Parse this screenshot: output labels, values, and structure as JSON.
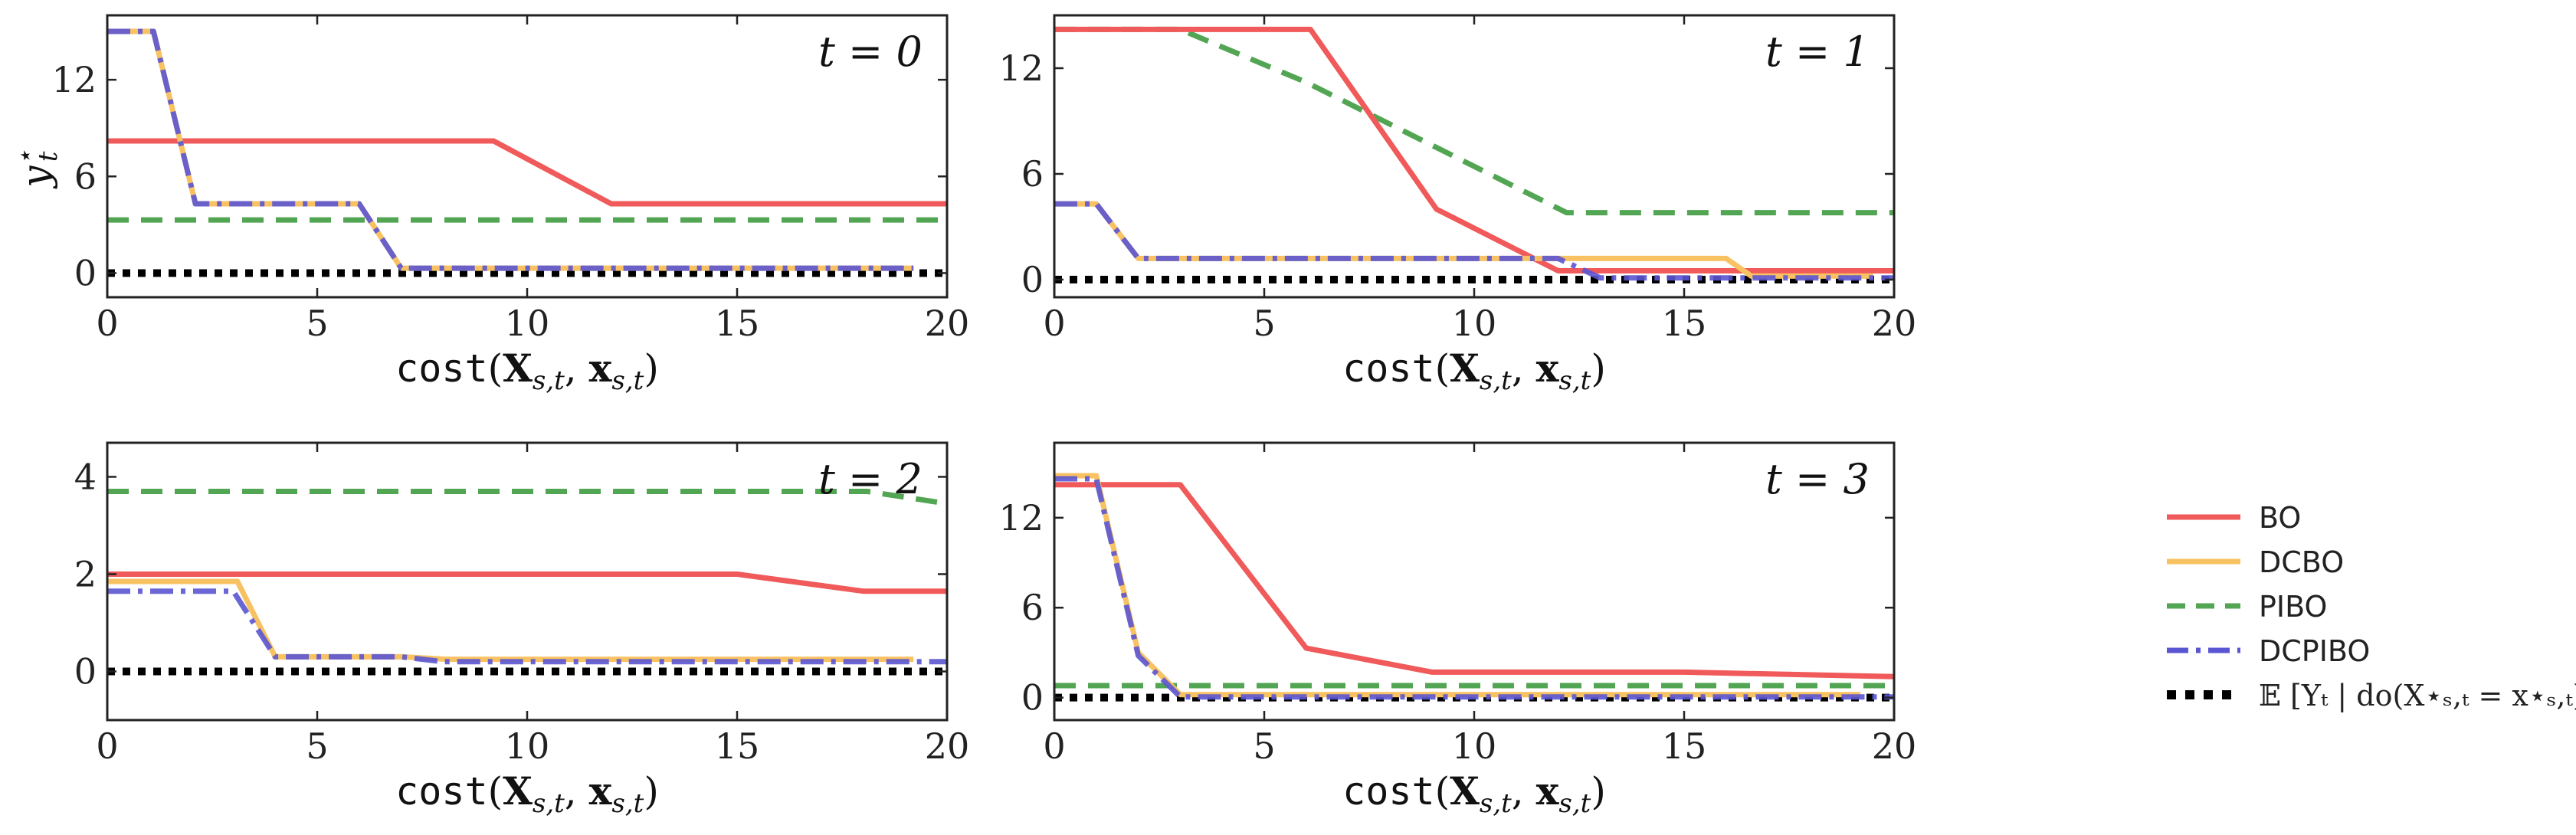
{
  "chart_data": [
    {
      "type": "line",
      "title": "t = 0",
      "xlabel": "cost(X_{s,t}, x_{s,t})",
      "ylabel": "y_t*",
      "xlim": [
        0,
        20
      ],
      "ylim": [
        -1.5,
        16
      ],
      "xticks": [
        0,
        5,
        10,
        15,
        20
      ],
      "yticks": [
        0,
        6,
        12
      ],
      "series": [
        {
          "name": "BO",
          "points": [
            [
              0,
              8.2
            ],
            [
              9.2,
              8.2
            ],
            [
              12,
              4.3
            ],
            [
              20,
              4.3
            ]
          ]
        },
        {
          "name": "DCBO",
          "points": [
            [
              0,
              15
            ],
            [
              1.1,
              15
            ],
            [
              2.1,
              4.3
            ],
            [
              6,
              4.3
            ],
            [
              7,
              0.3
            ],
            [
              19.2,
              0.3
            ]
          ]
        },
        {
          "name": "PIBO",
          "points": [
            [
              0,
              3.3
            ],
            [
              20,
              3.3
            ]
          ]
        },
        {
          "name": "DCPIBO",
          "points": [
            [
              0,
              15
            ],
            [
              1.1,
              15
            ],
            [
              2.1,
              4.3
            ],
            [
              6,
              4.3
            ],
            [
              7,
              0.3
            ],
            [
              19.2,
              0.3
            ]
          ]
        },
        {
          "name": "E[Y_t | do(X*_{s,t} = x*_{s,t})]",
          "points": [
            [
              0,
              0
            ],
            [
              20,
              0
            ]
          ]
        }
      ]
    },
    {
      "type": "line",
      "title": "t = 1",
      "xlabel": "cost(X_{s,t}, x_{s,t})",
      "ylabel": "",
      "xlim": [
        0,
        20
      ],
      "ylim": [
        -1,
        15
      ],
      "xticks": [
        0,
        5,
        10,
        15,
        20
      ],
      "yticks": [
        0,
        6,
        12
      ],
      "series": [
        {
          "name": "BO",
          "points": [
            [
              0,
              14.2
            ],
            [
              6.1,
              14.2
            ],
            [
              9.1,
              4.0
            ],
            [
              12,
              0.5
            ],
            [
              20,
              0.5
            ]
          ]
        },
        {
          "name": "DCBO",
          "points": [
            [
              0,
              4.3
            ],
            [
              1,
              4.3
            ],
            [
              2,
              1.2
            ],
            [
              16,
              1.2
            ],
            [
              16.6,
              0.2
            ],
            [
              19.5,
              0.2
            ]
          ]
        },
        {
          "name": "PIBO",
          "points": [
            [
              0,
              14.2
            ],
            [
              3,
              14.2
            ],
            [
              6,
              11.2
            ],
            [
              12.2,
              3.8
            ],
            [
              20,
              3.8
            ]
          ]
        },
        {
          "name": "DCPIBO",
          "points": [
            [
              0,
              4.3
            ],
            [
              1,
              4.3
            ],
            [
              2,
              1.2
            ],
            [
              12,
              1.2
            ],
            [
              13,
              0.1
            ],
            [
              20,
              0.1
            ]
          ]
        },
        {
          "name": "E[Y_t | do(X*_{s,t} = x*_{s,t})]",
          "points": [
            [
              0,
              0
            ],
            [
              20,
              0
            ]
          ]
        }
      ]
    },
    {
      "type": "line",
      "title": "t = 2",
      "xlabel": "cost(X_{s,t}, x_{s,t})",
      "ylabel": "",
      "xlim": [
        0,
        20
      ],
      "ylim": [
        -1,
        4.7
      ],
      "xticks": [
        0,
        5,
        10,
        15,
        20
      ],
      "yticks": [
        0,
        2,
        4
      ],
      "series": [
        {
          "name": "BO",
          "points": [
            [
              0,
              2.0
            ],
            [
              15,
              2.0
            ],
            [
              18,
              1.65
            ],
            [
              20,
              1.65
            ]
          ]
        },
        {
          "name": "DCBO",
          "points": [
            [
              0,
              1.85
            ],
            [
              3.1,
              1.85
            ],
            [
              4,
              0.3
            ],
            [
              7,
              0.3
            ],
            [
              8.1,
              0.25
            ],
            [
              19.2,
              0.25
            ]
          ]
        },
        {
          "name": "PIBO",
          "points": [
            [
              0,
              3.7
            ],
            [
              18.1,
              3.7
            ],
            [
              20,
              3.45
            ]
          ]
        },
        {
          "name": "DCPIBO",
          "points": [
            [
              0,
              1.65
            ],
            [
              3,
              1.65
            ],
            [
              4,
              0.3
            ],
            [
              7,
              0.3
            ],
            [
              8,
              0.2
            ],
            [
              20,
              0.2
            ]
          ]
        },
        {
          "name": "E[Y_t | do(X*_{s,t} = x*_{s,t})]",
          "points": [
            [
              0,
              0
            ],
            [
              20,
              0
            ]
          ]
        }
      ]
    },
    {
      "type": "line",
      "title": "t = 3",
      "xlabel": "cost(X_{s,t}, x_{s,t})",
      "ylabel": "",
      "xlim": [
        0,
        20
      ],
      "ylim": [
        -1.5,
        17
      ],
      "xticks": [
        0,
        5,
        10,
        15,
        20
      ],
      "yticks": [
        0,
        6,
        12
      ],
      "series": [
        {
          "name": "BO",
          "points": [
            [
              0,
              14.2
            ],
            [
              3,
              14.2
            ],
            [
              6,
              3.3
            ],
            [
              9,
              1.7
            ],
            [
              15,
              1.7
            ],
            [
              20,
              1.4
            ]
          ]
        },
        {
          "name": "DCBO",
          "points": [
            [
              0,
              14.8
            ],
            [
              1,
              14.8
            ],
            [
              2,
              3.0
            ],
            [
              3,
              0.2
            ],
            [
              19.2,
              0.2
            ]
          ]
        },
        {
          "name": "PIBO",
          "points": [
            [
              0,
              0.8
            ],
            [
              20,
              0.8
            ]
          ]
        },
        {
          "name": "DCPIBO",
          "points": [
            [
              0,
              14.6
            ],
            [
              1,
              14.6
            ],
            [
              2,
              2.8
            ],
            [
              3,
              0.05
            ],
            [
              20,
              0.05
            ]
          ]
        },
        {
          "name": "E[Y_t | do(X*_{s,t} = x*_{s,t})]",
          "points": [
            [
              0,
              0
            ],
            [
              20,
              0
            ]
          ]
        }
      ]
    }
  ],
  "legend": {
    "placement": "right",
    "items": [
      {
        "label": "BO",
        "color": "#f05a5a",
        "style": "solid"
      },
      {
        "label": "DCBO",
        "color": "#f8c263",
        "style": "solid"
      },
      {
        "label": "PIBO",
        "color": "#52a552",
        "style": "dashed"
      },
      {
        "label": "DCPIBO",
        "color": "#5a55d2",
        "style": "dashdot"
      },
      {
        "label": "𝔼 [Yₜ | do(X⋆ₛ,ₜ = x⋆ₛ,ₜ)]",
        "color": "#000000",
        "style": "dotted"
      }
    ]
  },
  "styles": {
    "BO": {
      "color": "#f05a5a",
      "dash": "solid"
    },
    "DCBO": {
      "color": "#f8c263",
      "dash": "solid"
    },
    "PIBO": {
      "color": "#52a552",
      "dash": "dashed"
    },
    "DCPIBO": {
      "color": "#5a55d2",
      "dash": "dashdot"
    },
    "E[Y_t | do(X*_{s,t} = x*_{s,t})]": {
      "color": "#000000",
      "dash": "dotted"
    }
  }
}
